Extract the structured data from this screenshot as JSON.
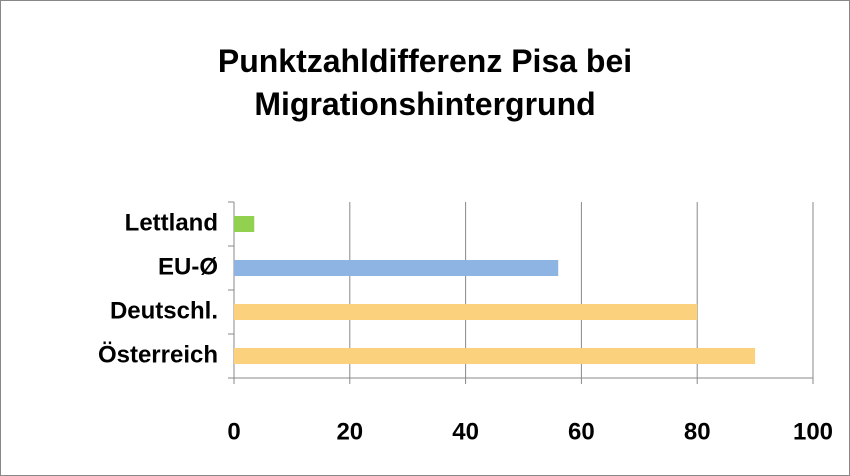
{
  "chart_data": {
    "type": "barh",
    "title": "Punktzahldifferenz Pisa bei Migrationshintergrund",
    "categories": [
      "Lettland",
      "EU-Ø",
      "Deutschl.",
      "Österreich"
    ],
    "values": [
      3.5,
      56,
      80,
      90
    ],
    "colors": [
      "#92d050",
      "#8db4e2",
      "#fcd17d",
      "#fcd17d"
    ],
    "xlim": [
      0,
      100
    ],
    "xticks": [
      0,
      20,
      40,
      60,
      80,
      100
    ],
    "grid": true
  }
}
